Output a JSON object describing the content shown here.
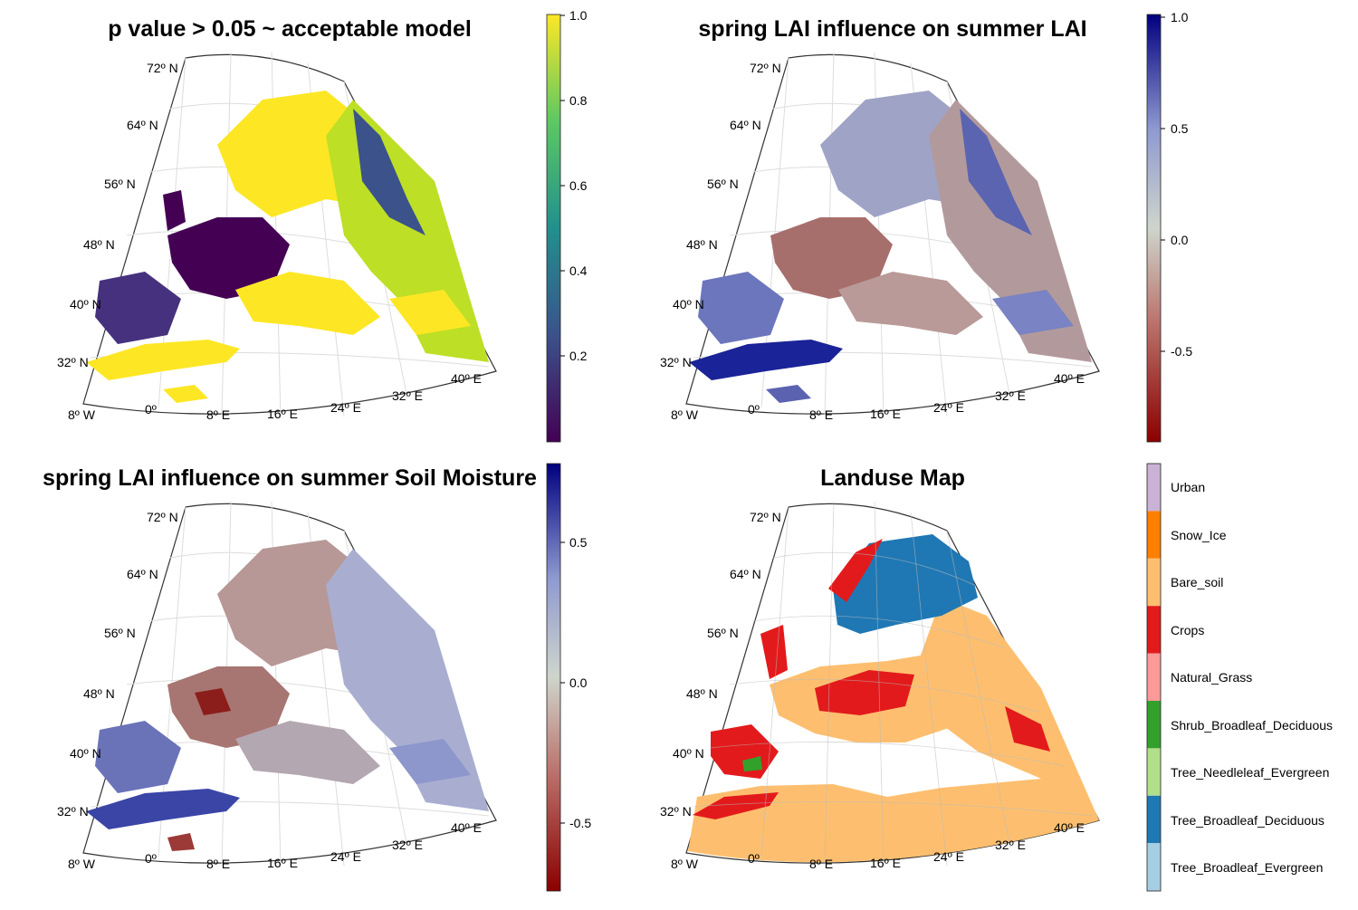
{
  "chart_data": [
    {
      "type": "heatmap",
      "title": "p value > 0.05 ~ acceptable model",
      "lat_labels": [
        "72º N",
        "64º N",
        "56º N",
        "48º N",
        "40º N",
        "32º N"
      ],
      "lon_labels": [
        "8º W",
        "0º",
        "8º E",
        "16º E",
        "24º E",
        "32º E",
        "40º E"
      ],
      "colorbar": {
        "colormap": "viridis",
        "range": [
          0.0,
          1.0
        ],
        "ticks": [
          "0.2",
          "0.4",
          "0.6",
          "0.8",
          "1.0"
        ],
        "colors": [
          "#440154",
          "#3b528b",
          "#21908d",
          "#5dc863",
          "#fde725"
        ]
      }
    },
    {
      "type": "heatmap",
      "title": "spring LAI influence on summer LAI",
      "lat_labels": [
        "72º N",
        "64º N",
        "56º N",
        "48º N",
        "40º N",
        "32º N"
      ],
      "lon_labels": [
        "8º W",
        "0º",
        "8º E",
        "16º E",
        "24º E",
        "32º E",
        "40º E"
      ],
      "colorbar": {
        "colormap": "diverging red-gray-blue",
        "range": [
          -0.95,
          1.0
        ],
        "ticks": [
          "-0.5",
          "0.0",
          "0.5",
          "1.0"
        ],
        "colors": [
          "#8b0000",
          "#c9a9a6",
          "#cfd5cc",
          "#9fa8d4",
          "#00007f"
        ]
      }
    },
    {
      "type": "heatmap",
      "title": "spring LAI influence on summer Soil Moisture",
      "lat_labels": [
        "72º N",
        "64º N",
        "56º N",
        "48º N",
        "40º N",
        "32º N"
      ],
      "lon_labels": [
        "8º W",
        "0º",
        "8º E",
        "16º E",
        "24º E",
        "32º E",
        "40º E"
      ],
      "colorbar": {
        "colormap": "diverging red-gray-blue",
        "range": [
          -0.75,
          0.75
        ],
        "ticks": [
          "-0.5",
          "0.0",
          "0.5"
        ],
        "colors": [
          "#8b0000",
          "#c9a9a6",
          "#cfd5cc",
          "#9fa8d4",
          "#00007f"
        ]
      }
    },
    {
      "type": "heatmap",
      "title": "Landuse Map",
      "lat_labels": [
        "72º N",
        "64º N",
        "56º N",
        "48º N",
        "40º N",
        "32º N"
      ],
      "lon_labels": [
        "8º W",
        "0º",
        "8º E",
        "16º E",
        "24º E",
        "32º E",
        "40º E"
      ],
      "legend": [
        {
          "label": "Urban",
          "color": "#cab2d6"
        },
        {
          "label": "Snow_Ice",
          "color": "#ff7f00"
        },
        {
          "label": "Bare_soil",
          "color": "#fdbf6f"
        },
        {
          "label": "Crops",
          "color": "#e31a1c"
        },
        {
          "label": "Natural_Grass",
          "color": "#fb9a99"
        },
        {
          "label": "Shrub_Broadleaf_Deciduous",
          "color": "#33a02c"
        },
        {
          "label": "Tree_Needleleaf_Evergreen",
          "color": "#b2df8a"
        },
        {
          "label": "Tree_Broadleaf_Deciduous",
          "color": "#1f78b4"
        },
        {
          "label": "Tree_Broadleaf_Evergreen",
          "color": "#a6cee3"
        }
      ]
    }
  ]
}
